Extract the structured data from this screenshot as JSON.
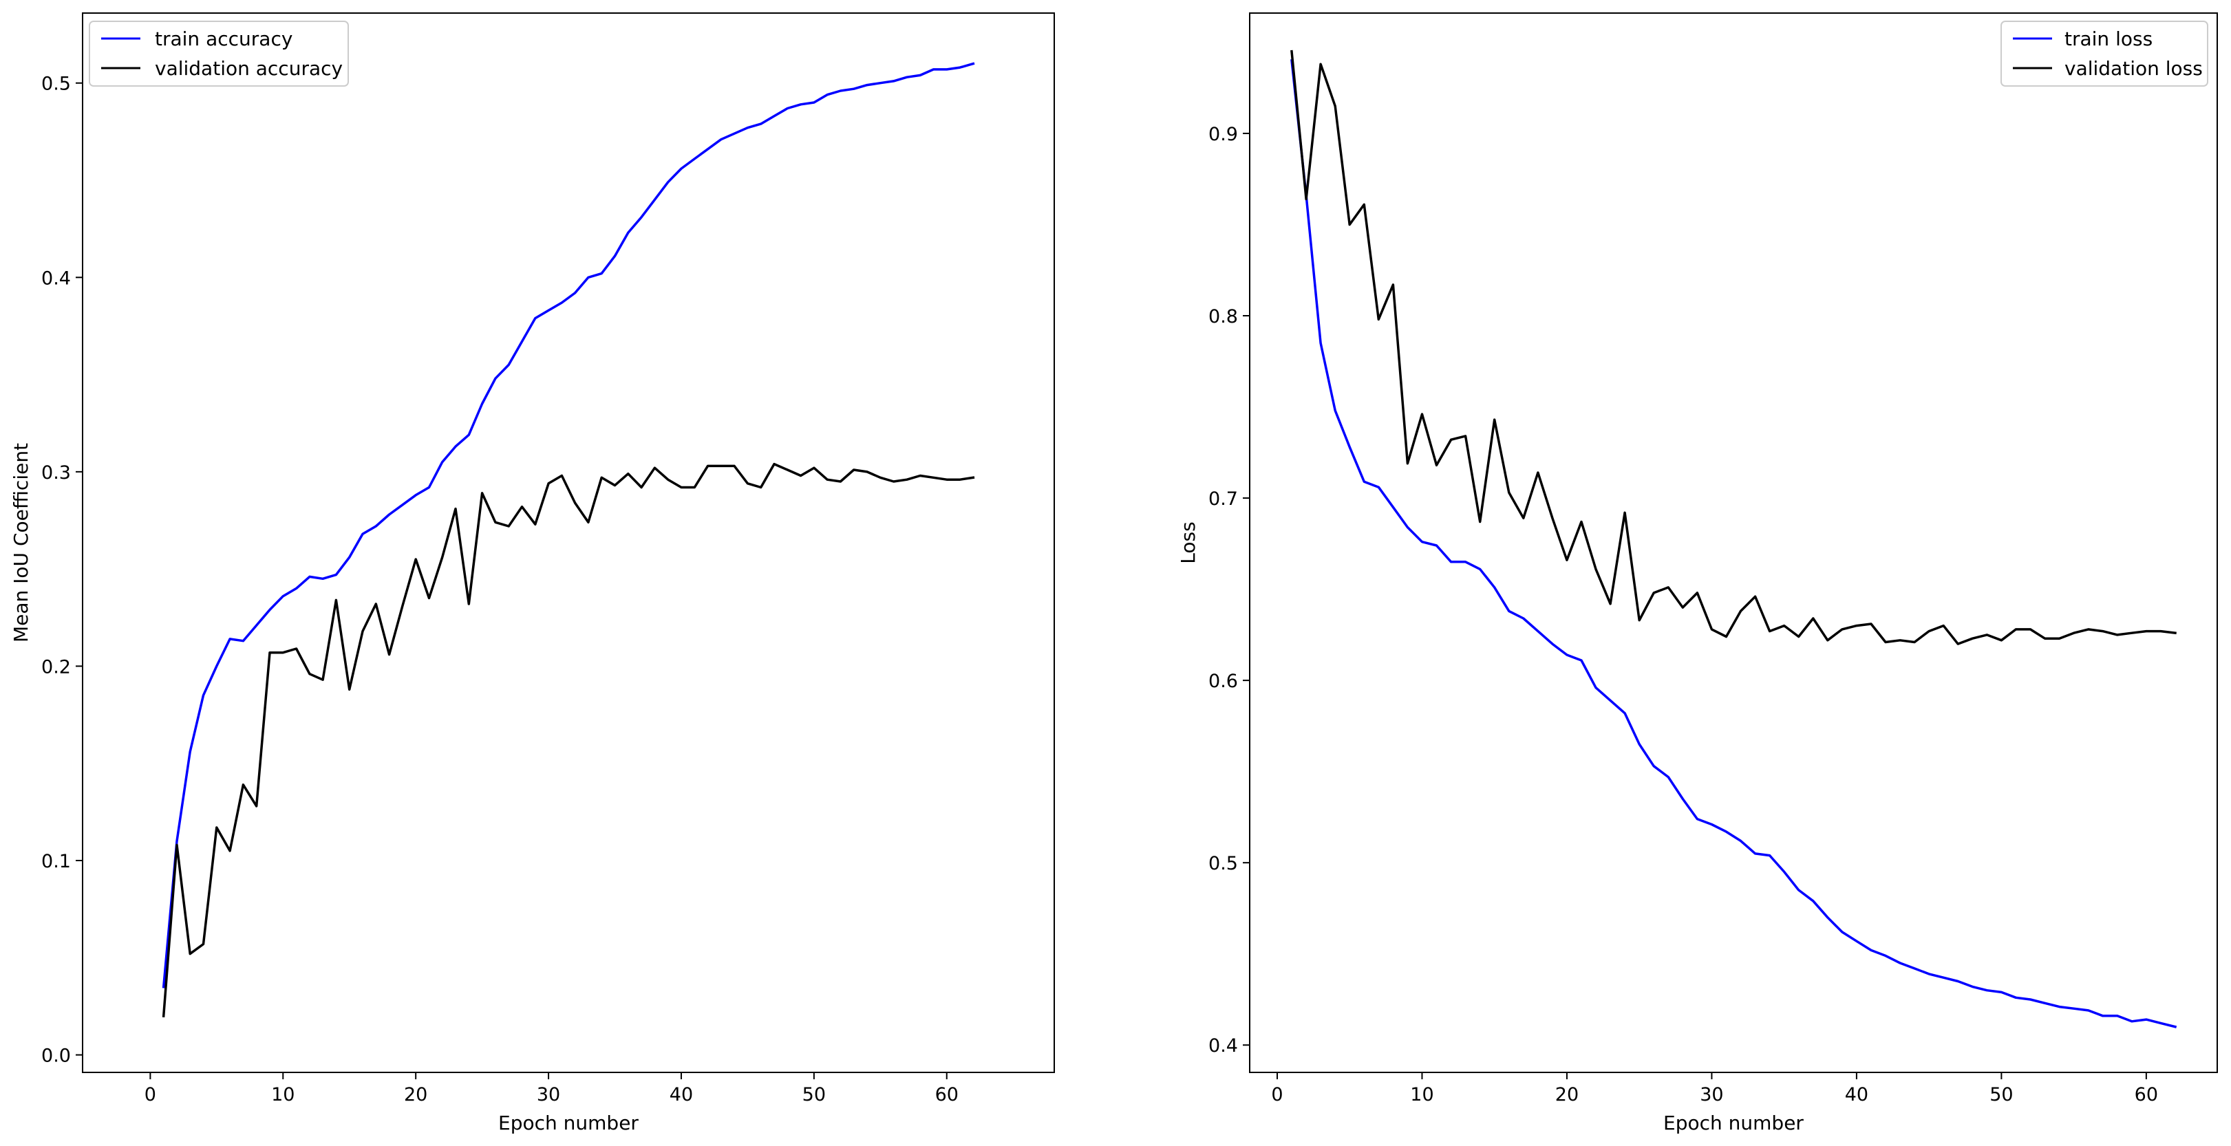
{
  "chart_data": [
    {
      "type": "line",
      "xlabel": "Epoch number",
      "ylabel": "Mean IoU Coefficient",
      "xlim": [
        -5.1,
        68.1
      ],
      "ylim": [
        -0.009,
        0.536
      ],
      "xticks": [
        0,
        10,
        20,
        30,
        40,
        50,
        60
      ],
      "yticks": [
        0.0,
        0.1,
        0.2,
        0.3,
        0.4,
        0.5
      ],
      "ytick_labels": [
        "0.0",
        "0.1",
        "0.2",
        "0.3",
        "0.4",
        "0.5"
      ],
      "grid": false,
      "legend_position": "upper left",
      "x": [
        1,
        2,
        3,
        4,
        5,
        6,
        7,
        8,
        9,
        10,
        11,
        12,
        13,
        14,
        15,
        16,
        17,
        18,
        19,
        20,
        21,
        22,
        23,
        24,
        25,
        26,
        27,
        28,
        29,
        30,
        31,
        32,
        33,
        34,
        35,
        36,
        37,
        38,
        39,
        40,
        41,
        42,
        43,
        44,
        45,
        46,
        47,
        48,
        49,
        50,
        51,
        52,
        53,
        54,
        55,
        56,
        57,
        58,
        59,
        60,
        61,
        62
      ],
      "series": [
        {
          "name": "train accuracy",
          "color": "#0000ff",
          "values": [
            0.035,
            0.11,
            0.156,
            0.185,
            0.2,
            0.214,
            0.213,
            0.221,
            0.229,
            0.236,
            0.24,
            0.246,
            0.245,
            0.247,
            0.256,
            0.268,
            0.272,
            0.278,
            0.283,
            0.288,
            0.292,
            0.305,
            0.313,
            0.319,
            0.335,
            0.348,
            0.355,
            0.367,
            0.379,
            0.383,
            0.387,
            0.392,
            0.4,
            0.402,
            0.411,
            0.423,
            0.431,
            0.44,
            0.449,
            0.456,
            0.461,
            0.466,
            0.471,
            0.474,
            0.477,
            0.479,
            0.483,
            0.487,
            0.489,
            0.49,
            0.494,
            0.496,
            0.497,
            0.499,
            0.5,
            0.501,
            0.503,
            0.504,
            0.507,
            0.507,
            0.508,
            0.51
          ]
        },
        {
          "name": "validation accuracy",
          "color": "#000000",
          "values": [
            0.02,
            0.108,
            0.052,
            0.057,
            0.117,
            0.105,
            0.139,
            0.128,
            0.207,
            0.207,
            0.209,
            0.196,
            0.193,
            0.234,
            0.188,
            0.218,
            0.232,
            0.206,
            0.231,
            0.255,
            0.235,
            0.256,
            0.281,
            0.232,
            0.289,
            0.274,
            0.272,
            0.282,
            0.273,
            0.294,
            0.298,
            0.284,
            0.274,
            0.297,
            0.293,
            0.299,
            0.292,
            0.302,
            0.296,
            0.292,
            0.292,
            0.303,
            0.303,
            0.303,
            0.294,
            0.292,
            0.304,
            0.301,
            0.298,
            0.302,
            0.296,
            0.295,
            0.301,
            0.3,
            0.297,
            0.295,
            0.296,
            0.298,
            0.297,
            0.296,
            0.296,
            0.297
          ]
        }
      ]
    },
    {
      "type": "line",
      "xlabel": "Epoch number",
      "ylabel": "Loss",
      "xlim": [
        -1.9,
        64.9
      ],
      "ylim": [
        0.385,
        0.966
      ],
      "xticks": [
        0,
        10,
        20,
        30,
        40,
        50,
        60
      ],
      "yticks": [
        0.4,
        0.5,
        0.6,
        0.7,
        0.8,
        0.9
      ],
      "ytick_labels": [
        "0.4",
        "0.5",
        "0.6",
        "0.7",
        "0.8",
        "0.9"
      ],
      "grid": false,
      "legend_position": "upper right",
      "x": [
        1,
        2,
        3,
        4,
        5,
        6,
        7,
        8,
        9,
        10,
        11,
        12,
        13,
        14,
        15,
        16,
        17,
        18,
        19,
        20,
        21,
        22,
        23,
        24,
        25,
        26,
        27,
        28,
        29,
        30,
        31,
        32,
        33,
        34,
        35,
        36,
        37,
        38,
        39,
        40,
        41,
        42,
        43,
        44,
        45,
        46,
        47,
        48,
        49,
        50,
        51,
        52,
        53,
        54,
        55,
        56,
        57,
        58,
        59,
        60,
        61,
        62
      ],
      "series": [
        {
          "name": "train loss",
          "color": "#0000ff",
          "values": [
            0.94,
            0.866,
            0.785,
            0.748,
            0.728,
            0.709,
            0.706,
            0.695,
            0.684,
            0.676,
            0.674,
            0.665,
            0.665,
            0.661,
            0.651,
            0.638,
            0.634,
            0.627,
            0.62,
            0.614,
            0.611,
            0.596,
            0.589,
            0.582,
            0.565,
            0.553,
            0.547,
            0.535,
            0.524,
            0.521,
            0.517,
            0.512,
            0.505,
            0.504,
            0.495,
            0.485,
            0.479,
            0.47,
            0.462,
            0.457,
            0.452,
            0.449,
            0.445,
            0.442,
            0.439,
            0.437,
            0.435,
            0.432,
            0.43,
            0.429,
            0.426,
            0.425,
            0.423,
            0.421,
            0.42,
            0.419,
            0.416,
            0.416,
            0.413,
            0.414,
            0.412,
            0.41
          ]
        },
        {
          "name": "validation loss",
          "color": "#000000",
          "values": [
            0.945,
            0.864,
            0.938,
            0.915,
            0.85,
            0.861,
            0.798,
            0.817,
            0.719,
            0.746,
            0.718,
            0.732,
            0.734,
            0.687,
            0.743,
            0.703,
            0.689,
            0.714,
            0.689,
            0.666,
            0.687,
            0.661,
            0.642,
            0.692,
            0.633,
            0.648,
            0.651,
            0.64,
            0.648,
            0.628,
            0.624,
            0.638,
            0.646,
            0.627,
            0.63,
            0.624,
            0.634,
            0.622,
            0.628,
            0.63,
            0.631,
            0.621,
            0.622,
            0.621,
            0.627,
            0.63,
            0.62,
            0.623,
            0.625,
            0.622,
            0.628,
            0.628,
            0.623,
            0.623,
            0.626,
            0.628,
            0.627,
            0.625,
            0.626,
            0.627,
            0.627,
            0.626
          ]
        }
      ]
    }
  ]
}
